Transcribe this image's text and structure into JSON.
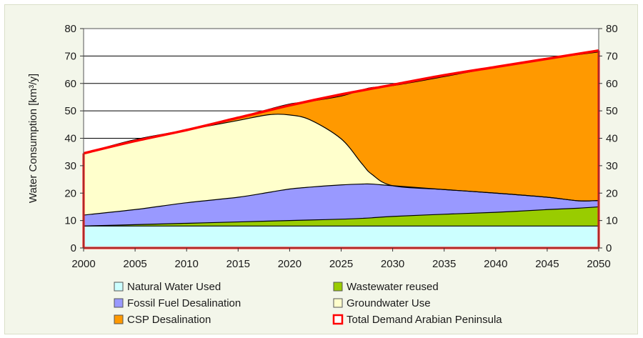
{
  "chart_data": {
    "type": "area",
    "ylabel": "Water Consumption [km³/y]",
    "xlim": [
      2000,
      2050
    ],
    "ylim": [
      0,
      80
    ],
    "x_ticks": [
      "2000",
      "2005",
      "2010",
      "2015",
      "2020",
      "2025",
      "2030",
      "2035",
      "2040",
      "2045",
      "2050"
    ],
    "y_ticks": [
      "0",
      "10",
      "20",
      "30",
      "40",
      "50",
      "60",
      "70",
      "80"
    ],
    "y_ticks_right": [
      "0",
      "10",
      "20",
      "30",
      "40",
      "50",
      "60",
      "70",
      "80"
    ],
    "stacked": true,
    "x": [
      2000,
      2005,
      2010,
      2015,
      2018,
      2020,
      2022,
      2025,
      2027,
      2028,
      2030,
      2035,
      2040,
      2045,
      2048,
      2050
    ],
    "series": [
      {
        "name": "Natural Water Used",
        "color": "#ccffff",
        "values": [
          8,
          8,
          8,
          8,
          8,
          8,
          8,
          8,
          8,
          8,
          8,
          8,
          8,
          8,
          8,
          8
        ]
      },
      {
        "name": "Wastewater reused",
        "color": "#99cc00",
        "values": [
          0,
          0.5,
          1,
          1.5,
          1.8,
          2,
          2.2,
          2.5,
          2.8,
          3,
          3.5,
          4.3,
          5,
          6,
          6.5,
          7
        ]
      },
      {
        "name": "Fossil Fuel Desalination",
        "color": "#9999ff",
        "values": [
          4,
          5.5,
          7.5,
          9,
          10.5,
          11.5,
          12,
          12.5,
          12.5,
          12.3,
          11.2,
          9,
          7,
          4.5,
          2.7,
          2.3
        ]
      },
      {
        "name": "Groundwater Use",
        "color": "#ffffcc",
        "values": [
          22.5,
          25.5,
          26.5,
          28,
          28.3,
          27,
          24.5,
          16.8,
          7.5,
          3.5,
          0,
          0,
          0,
          0,
          0,
          0
        ]
      },
      {
        "name": "CSP Desalination",
        "color": "#ff9900",
        "values": [
          0,
          0,
          0,
          1,
          2,
          4,
          6.8,
          15.6,
          26.8,
          31.7,
          36.5,
          41.2,
          46,
          50.5,
          53.3,
          54.2
        ]
      }
    ],
    "total": {
      "name": "Total Demand Arabian Peninsula",
      "color": "#ff0000",
      "x": [
        2000,
        2005,
        2010,
        2015,
        2020,
        2025,
        2030,
        2035,
        2040,
        2045,
        2050
      ],
      "values": [
        34.5,
        39,
        43,
        47.5,
        52,
        56,
        59.5,
        63,
        66,
        69,
        72
      ]
    },
    "legend": [
      {
        "label": "Natural Water Used",
        "color": "#ccffff",
        "border": "#555555"
      },
      {
        "label": "Wastewater reused",
        "color": "#99cc00",
        "border": "#555555"
      },
      {
        "label": "Fossil Fuel Desalination",
        "color": "#9999ff",
        "border": "#555555"
      },
      {
        "label": "Groundwater Use",
        "color": "#ffffcc",
        "border": "#555555"
      },
      {
        "label": "CSP Desalination",
        "color": "#ff9900",
        "border": "#555555"
      },
      {
        "label": "Total Demand Arabian Peninsula",
        "color": "#ffffff",
        "border": "#ff0000"
      }
    ],
    "grid": true,
    "legend_position": "bottom"
  }
}
